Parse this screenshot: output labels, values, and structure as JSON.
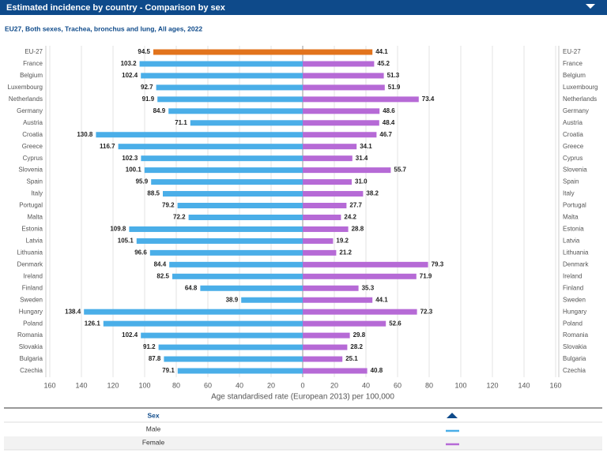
{
  "chart_data": {
    "type": "butterfly",
    "title": "Estimated incidence by country - Comparison by sex",
    "subtitle": "EU27, Both sexes, Trachea, bronchus and lung, All ages, 2022",
    "x_label": "Age standardised rate (European 2013) per 100,000",
    "legend_title": "Sex",
    "categories": [
      "EU-27",
      "France",
      "Belgium",
      "Luxembourg",
      "Netherlands",
      "Germany",
      "Austria",
      "Croatia",
      "Greece",
      "Cyprus",
      "Slovenia",
      "Spain",
      "Italy",
      "Portugal",
      "Malta",
      "Estonia",
      "Latvia",
      "Lithuania",
      "Denmark",
      "Ireland",
      "Finland",
      "Sweden",
      "Hungary",
      "Poland",
      "Romania",
      "Slovakia",
      "Bulgaria",
      "Czechia"
    ],
    "series": [
      {
        "name": "Male",
        "color": "#4aaee8",
        "values": [
          94.5,
          103.2,
          102.4,
          92.7,
          91.9,
          84.9,
          71.1,
          130.8,
          116.7,
          102.3,
          100.1,
          95.9,
          88.5,
          79.2,
          72.2,
          109.8,
          105.1,
          96.6,
          84.4,
          82.5,
          64.8,
          38.9,
          138.4,
          126.1,
          102.4,
          91.2,
          87.8,
          79.1
        ]
      },
      {
        "name": "Female",
        "color": "#b66ad6",
        "values": [
          44.1,
          45.2,
          51.3,
          51.9,
          73.4,
          48.6,
          48.4,
          46.7,
          34.1,
          31.4,
          55.7,
          31.0,
          38.2,
          27.7,
          24.2,
          28.8,
          19.2,
          21.2,
          79.3,
          71.9,
          35.3,
          44.1,
          72.3,
          52.6,
          29.8,
          28.2,
          25.1,
          40.8
        ],
        "value_labels": [
          "44.1",
          "45.2",
          "51.3",
          "51.9",
          "73.4",
          "48.6",
          "48.4",
          "46.7",
          "34.1",
          "31.4",
          "55.7",
          "31.0",
          "38.2",
          "27.7",
          "24.2",
          "28.8",
          "19.2",
          "21.2",
          "79.3",
          "71.9",
          "35.3",
          "44.1",
          "72.3",
          "52.6",
          "29.8",
          "28.2",
          "25.1",
          "40.8"
        ]
      }
    ],
    "highlight": {
      "category": "EU-27",
      "color": "#e2731c"
    },
    "xlim": [
      -160,
      160
    ],
    "xticks": [
      {
        "value": -160,
        "label": "160"
      },
      {
        "value": -140,
        "label": "140"
      },
      {
        "value": -120,
        "label": "120"
      },
      {
        "value": -100,
        "label": "100"
      },
      {
        "value": -80,
        "label": "80"
      },
      {
        "value": -60,
        "label": "60"
      },
      {
        "value": -40,
        "label": "40"
      },
      {
        "value": -20,
        "label": "20"
      },
      0,
      20,
      40,
      60,
      80,
      100,
      120,
      140,
      160
    ],
    "grid": true
  }
}
